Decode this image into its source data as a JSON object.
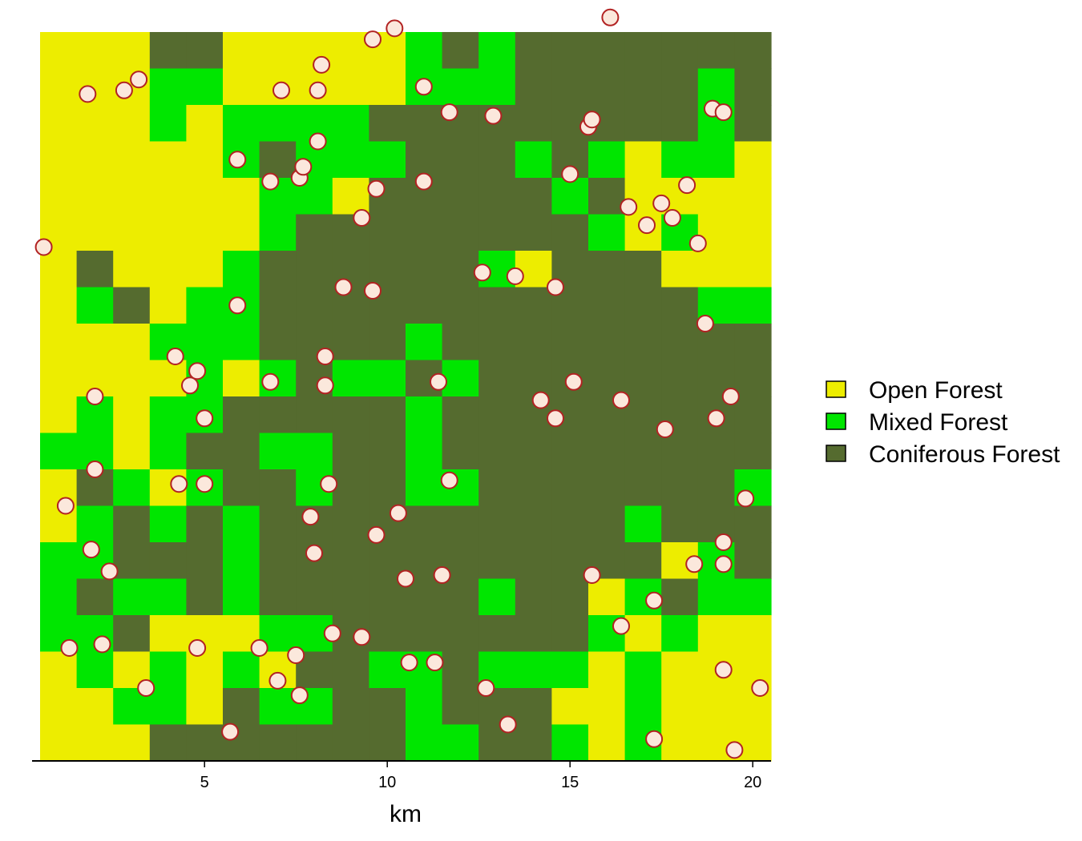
{
  "chart_data": {
    "type": "heatmap",
    "title": "",
    "xlabel": "km",
    "ylabel": "",
    "xlim": [
      0.5,
      20.5
    ],
    "ylim": [
      0.5,
      20.5
    ],
    "x_ticks": [
      5,
      10,
      15,
      20
    ],
    "y_axis_shown": false,
    "grid": false,
    "legend_position": "right",
    "legend": [
      {
        "code": "O",
        "label": "Open Forest",
        "color": "#EDED00"
      },
      {
        "code": "M",
        "label": "Mixed Forest",
        "color": "#00E600"
      },
      {
        "code": "C",
        "label": "Coniferous Forest",
        "color": "#556B2F"
      }
    ],
    "grid_cells_top_to_bottom": [
      "OOOCCOOOOOMCMCCCCCCC",
      "OOOMMOOOOOMMMCCCCCMC",
      "OOOMOMMMMCCCCCCCCCMC",
      "OOOOOMCMMMCCCMCMOMMO",
      "OOOOOOMMOCCCCCMCOOOO",
      "OOOOOOMCCCCCCCCMOMOO",
      "OCOOOMCCCCCCMOCCCOOO",
      "OMCOMMCCCCCCCCCCCCMM",
      "OOOMMMCCCCMCCCCCCCCC",
      "OOOOMOMCMMCMCCCCCCCC",
      "OMOMMCCCCCMCCCCCCCCC",
      "MMOMCCMMCCMCCCCCCCCC",
      "OCMOMCCMCCMMCCCCCCCM",
      "OMCMCMCCCCCCCCCCMCCC",
      "MMCCCMCCCCCCCCCCCOMC",
      "MCMMCMCCCCCCMCCOMCMM",
      "MMCOOOMMCCCCCCCMOMOO",
      "OMOMOMOCCMMCMMMOMOOO",
      "OOMMOCMMCCMCCCOOMOOO",
      "OOOCCCCCCCMMCCMOMOOO"
    ],
    "points": [
      {
        "x": 0.6,
        "y": 14.6
      },
      {
        "x": 1.2,
        "y": 7.5
      },
      {
        "x": 1.3,
        "y": 3.6
      },
      {
        "x": 1.8,
        "y": 18.8
      },
      {
        "x": 1.9,
        "y": 6.3
      },
      {
        "x": 2.0,
        "y": 8.5
      },
      {
        "x": 2.0,
        "y": 10.5
      },
      {
        "x": 2.2,
        "y": 3.7
      },
      {
        "x": 2.4,
        "y": 5.7
      },
      {
        "x": 2.8,
        "y": 18.9
      },
      {
        "x": 3.2,
        "y": 19.2
      },
      {
        "x": 3.4,
        "y": 2.5
      },
      {
        "x": 4.2,
        "y": 11.6
      },
      {
        "x": 4.3,
        "y": 8.1
      },
      {
        "x": 4.6,
        "y": 10.8
      },
      {
        "x": 4.8,
        "y": 11.2
      },
      {
        "x": 4.8,
        "y": 3.6
      },
      {
        "x": 5.0,
        "y": 9.9
      },
      {
        "x": 5.0,
        "y": 8.1
      },
      {
        "x": 5.7,
        "y": 1.3
      },
      {
        "x": 5.9,
        "y": 13.0
      },
      {
        "x": 5.9,
        "y": 17.0
      },
      {
        "x": 6.5,
        "y": 3.6
      },
      {
        "x": 6.8,
        "y": 16.4
      },
      {
        "x": 6.8,
        "y": 10.9
      },
      {
        "x": 7.0,
        "y": 2.7
      },
      {
        "x": 7.1,
        "y": 18.9
      },
      {
        "x": 7.5,
        "y": 3.4
      },
      {
        "x": 7.6,
        "y": 2.3
      },
      {
        "x": 7.6,
        "y": 16.5
      },
      {
        "x": 7.7,
        "y": 16.8
      },
      {
        "x": 7.9,
        "y": 7.2
      },
      {
        "x": 8.0,
        "y": 6.2
      },
      {
        "x": 8.1,
        "y": 17.5
      },
      {
        "x": 8.1,
        "y": 18.9
      },
      {
        "x": 8.2,
        "y": 19.6
      },
      {
        "x": 8.3,
        "y": 11.6
      },
      {
        "x": 8.3,
        "y": 10.8
      },
      {
        "x": 8.4,
        "y": 8.1
      },
      {
        "x": 8.5,
        "y": 4.0
      },
      {
        "x": 8.8,
        "y": 13.5
      },
      {
        "x": 9.3,
        "y": 3.9
      },
      {
        "x": 9.3,
        "y": 15.4
      },
      {
        "x": 9.6,
        "y": 13.4
      },
      {
        "x": 9.6,
        "y": 20.3
      },
      {
        "x": 9.7,
        "y": 16.2
      },
      {
        "x": 9.7,
        "y": 6.7
      },
      {
        "x": 10.2,
        "y": 20.6
      },
      {
        "x": 10.3,
        "y": 7.3
      },
      {
        "x": 10.5,
        "y": 5.5
      },
      {
        "x": 10.6,
        "y": 3.2
      },
      {
        "x": 11.0,
        "y": 19.0
      },
      {
        "x": 11.0,
        "y": 16.4
      },
      {
        "x": 11.3,
        "y": 3.2
      },
      {
        "x": 11.4,
        "y": 10.9
      },
      {
        "x": 11.5,
        "y": 5.6
      },
      {
        "x": 11.7,
        "y": 18.3
      },
      {
        "x": 11.7,
        "y": 8.2
      },
      {
        "x": 12.6,
        "y": 13.9
      },
      {
        "x": 12.7,
        "y": 2.5
      },
      {
        "x": 12.9,
        "y": 18.2
      },
      {
        "x": 13.3,
        "y": 1.5
      },
      {
        "x": 13.5,
        "y": 13.8
      },
      {
        "x": 14.2,
        "y": 10.4
      },
      {
        "x": 14.6,
        "y": 9.9
      },
      {
        "x": 14.6,
        "y": 13.5
      },
      {
        "x": 15.0,
        "y": 16.6
      },
      {
        "x": 15.1,
        "y": 10.9
      },
      {
        "x": 15.5,
        "y": 17.9
      },
      {
        "x": 15.6,
        "y": 18.1
      },
      {
        "x": 15.6,
        "y": 5.6
      },
      {
        "x": 16.1,
        "y": 20.9
      },
      {
        "x": 16.4,
        "y": 4.2
      },
      {
        "x": 16.4,
        "y": 10.4
      },
      {
        "x": 16.6,
        "y": 15.7
      },
      {
        "x": 17.1,
        "y": 15.2
      },
      {
        "x": 17.3,
        "y": 1.1
      },
      {
        "x": 17.3,
        "y": 4.9
      },
      {
        "x": 17.5,
        "y": 15.8
      },
      {
        "x": 17.6,
        "y": 9.6
      },
      {
        "x": 17.8,
        "y": 15.4
      },
      {
        "x": 18.2,
        "y": 16.3
      },
      {
        "x": 18.4,
        "y": 5.9
      },
      {
        "x": 18.5,
        "y": 14.7
      },
      {
        "x": 18.7,
        "y": 12.5
      },
      {
        "x": 18.9,
        "y": 18.4
      },
      {
        "x": 19.0,
        "y": 9.9
      },
      {
        "x": 19.2,
        "y": 18.3
      },
      {
        "x": 19.2,
        "y": 5.9
      },
      {
        "x": 19.2,
        "y": 6.5
      },
      {
        "x": 19.2,
        "y": 3.0
      },
      {
        "x": 19.4,
        "y": 10.5
      },
      {
        "x": 19.5,
        "y": 0.8
      },
      {
        "x": 19.8,
        "y": 7.7
      },
      {
        "x": 20.2,
        "y": 2.5
      }
    ]
  }
}
